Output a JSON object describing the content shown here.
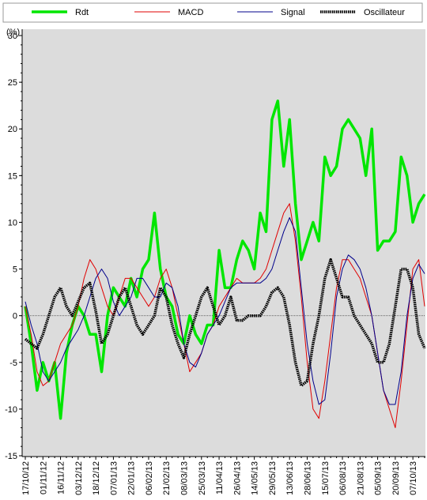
{
  "chart_data": {
    "type": "line",
    "y_label": "(%)",
    "categories": [
      "17/10/12",
      null,
      null,
      "01/11/12",
      null,
      null,
      "16/11/12",
      null,
      null,
      "03/12/12",
      null,
      null,
      "18/12/12",
      null,
      null,
      "07/01/13",
      null,
      null,
      "22/01/13",
      null,
      null,
      "06/02/13",
      null,
      null,
      "21/02/13",
      null,
      null,
      "08/03/13",
      null,
      null,
      "25/03/13",
      null,
      null,
      "11/04/13",
      null,
      null,
      "26/04/13",
      null,
      null,
      "14/05/13",
      null,
      null,
      "29/05/13",
      null,
      null,
      "13/06/13",
      null,
      null,
      "28/06/13",
      null,
      null,
      "15/07/13",
      null,
      null,
      "06/08/13",
      null,
      null,
      "21/08/13",
      null,
      null,
      "05/09/13",
      null,
      null,
      "20/09/13",
      null,
      null,
      "07/10/13",
      null,
      null
    ],
    "series": [
      {
        "name": "Rdt",
        "color": "#00e600",
        "values": [
          1,
          -3,
          -8,
          -5,
          -7,
          -5,
          -11,
          -4,
          -1,
          1,
          0,
          -2,
          -2,
          -6,
          0,
          3,
          2,
          1,
          4,
          2,
          5,
          6,
          11,
          5,
          2,
          1,
          -2,
          -3,
          0,
          -2,
          -3,
          -1,
          -1,
          7,
          3,
          3,
          6,
          8,
          7,
          5,
          11,
          9,
          21,
          23,
          16,
          21,
          12,
          6,
          8,
          10,
          8,
          17,
          15,
          16,
          20,
          21,
          20,
          19,
          15,
          20,
          7,
          8,
          8,
          9,
          17,
          15,
          10,
          12,
          13
        ]
      },
      {
        "name": "MACD",
        "color": "#e00000",
        "values": [
          1,
          -2,
          -6,
          -7.5,
          -7,
          -5,
          -3,
          -2,
          -1,
          1,
          4,
          6,
          5,
          3,
          1,
          0,
          2,
          4,
          4,
          3,
          2,
          1,
          2,
          4,
          5,
          3,
          0,
          -3,
          -6,
          -5,
          -4,
          -2,
          -1,
          1,
          2,
          3,
          4,
          3.5,
          3.5,
          3.5,
          4,
          5,
          7,
          9,
          11,
          12,
          8,
          2,
          -5,
          -10,
          -11,
          -7,
          -2,
          3,
          6,
          6,
          5,
          4,
          2,
          0,
          -4,
          -8,
          -10,
          -12,
          -7,
          -1,
          5,
          6,
          1
        ]
      },
      {
        "name": "Signal",
        "color": "#00008b",
        "values": [
          1.5,
          -1,
          -3,
          -6,
          -7,
          -6,
          -5,
          -3.5,
          -2.5,
          -1.5,
          0,
          2,
          4,
          5,
          4,
          1.5,
          0,
          1,
          2,
          4,
          4,
          3,
          2,
          2,
          3.5,
          3,
          1,
          -3,
          -5,
          -5.5,
          -4,
          -2,
          -1,
          0,
          1.5,
          3,
          3.5,
          3.5,
          3.5,
          3.5,
          3.5,
          4,
          5,
          7,
          9,
          10.5,
          9,
          3,
          -3,
          -7,
          -9.5,
          -9,
          -4,
          2,
          5,
          6.5,
          6,
          5,
          3,
          0,
          -4,
          -8,
          -9.5,
          -9.5,
          -6,
          0,
          4,
          5.5,
          4.5
        ]
      },
      {
        "name": "Oscillateur",
        "color": "#000000",
        "values": [
          -2.5,
          -3,
          -3.5,
          -2,
          0,
          2,
          3,
          1,
          0,
          1.5,
          3,
          3.5,
          0.5,
          -3,
          -2,
          0,
          2,
          3,
          1,
          -1,
          -2,
          -1,
          0,
          3,
          2,
          -1,
          -3,
          -4.5,
          -2,
          0,
          2,
          3,
          1,
          -1,
          0,
          2,
          -0.5,
          -0.5,
          0,
          0,
          0,
          1,
          2.5,
          3,
          2,
          -1,
          -5,
          -7.5,
          -7,
          -3,
          0,
          4,
          6,
          4,
          2,
          2,
          0,
          -1,
          -2,
          -3,
          -5,
          -5,
          -3,
          1,
          5,
          5,
          3,
          -2,
          -3.5
        ]
      }
    ],
    "ylim": [
      -15,
      30
    ],
    "yticks": [
      -15,
      -10,
      -5,
      0,
      5,
      10,
      15,
      20,
      25,
      30
    ],
    "grid": false
  }
}
